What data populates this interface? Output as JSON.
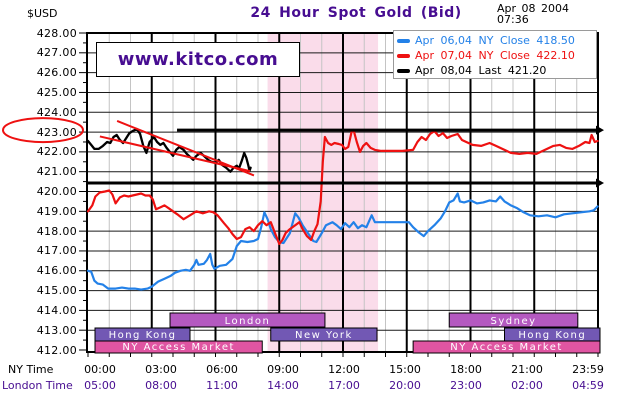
{
  "header": {
    "currency": "$USD",
    "title": "24 Hour Spot Gold (Bid)",
    "date": "Apr 08 2004",
    "time": "07:36",
    "watermark": "www.kitco.com"
  },
  "palette": {
    "purple_text": "#470d91",
    "blue_series": "#2381e8",
    "red_series": "#ee1111",
    "black_series": "#000000",
    "session_band_pink": "#fadcea",
    "bar_orchid": "#b459c0",
    "bar_slate_purple": "#7258b4",
    "bar_pink": "#e055a2"
  },
  "legend": {
    "items": [
      {
        "label": "Apr 06,04 NY Close 418.50",
        "color": "#2381e8"
      },
      {
        "label": "Apr 07,04 NY Close 422.10",
        "color": "#ee1111"
      },
      {
        "label": "Apr 08,04 Last 421.20",
        "color": "#000000"
      }
    ]
  },
  "x_axis": {
    "ny_label": "NY Time",
    "london_label": "London Time",
    "ny_ticks": [
      "00:00",
      "03:00",
      "06:00",
      "09:00",
      "12:00",
      "15:00",
      "18:00",
      "21:00",
      "23:59"
    ],
    "london_ticks": [
      "05:00",
      "08:00",
      "11:00",
      "14:00",
      "17:00",
      "20:00",
      "23:00",
      "02:00",
      "04:59"
    ]
  },
  "y_axis": {
    "min": 412,
    "max": 428,
    "step": 1,
    "label_format": "0.00"
  },
  "chart_data": {
    "type": "line",
    "title": "24 Hour Spot Gold (Bid)",
    "x_unit": "hours NY time",
    "x_range": [
      0,
      24
    ],
    "y_range": [
      412,
      428
    ],
    "grid": {
      "hourly_vlines": "gray",
      "three_hour_vlines": "black",
      "price_hlines": "black"
    },
    "series": [
      {
        "name": "Apr 06,04",
        "legend": "NY Close",
        "close": 418.5,
        "color": "#2381e8",
        "points": [
          [
            0,
            416.0
          ],
          [
            0.15,
            415.95
          ],
          [
            0.3,
            415.5
          ],
          [
            0.45,
            415.35
          ],
          [
            0.7,
            415.3
          ],
          [
            0.95,
            415.1
          ],
          [
            1.3,
            415.1
          ],
          [
            1.6,
            415.15
          ],
          [
            1.9,
            415.1
          ],
          [
            2.2,
            415.1
          ],
          [
            2.5,
            415.05
          ],
          [
            2.8,
            415.1
          ],
          [
            3.0,
            415.2
          ],
          [
            3.3,
            415.45
          ],
          [
            3.6,
            415.6
          ],
          [
            3.9,
            415.75
          ],
          [
            4.1,
            415.9
          ],
          [
            4.35,
            416.0
          ],
          [
            4.6,
            416.05
          ],
          [
            4.8,
            416.0
          ],
          [
            5.0,
            416.3
          ],
          [
            5.1,
            416.55
          ],
          [
            5.2,
            416.3
          ],
          [
            5.45,
            416.35
          ],
          [
            5.6,
            416.55
          ],
          [
            5.75,
            416.85
          ],
          [
            5.85,
            416.3
          ],
          [
            5.95,
            416.1
          ],
          [
            6.2,
            416.25
          ],
          [
            6.5,
            416.3
          ],
          [
            6.8,
            416.6
          ],
          [
            7.0,
            417.25
          ],
          [
            7.2,
            417.5
          ],
          [
            7.5,
            417.45
          ],
          [
            7.8,
            417.5
          ],
          [
            8.0,
            417.6
          ],
          [
            8.15,
            418.2
          ],
          [
            8.3,
            418.95
          ],
          [
            8.45,
            418.6
          ],
          [
            8.6,
            418.1
          ],
          [
            8.8,
            417.7
          ],
          [
            9.0,
            417.45
          ],
          [
            9.2,
            417.4
          ],
          [
            9.5,
            417.9
          ],
          [
            9.75,
            418.9
          ],
          [
            9.9,
            418.7
          ],
          [
            10.1,
            418.3
          ],
          [
            10.35,
            417.9
          ],
          [
            10.6,
            417.5
          ],
          [
            10.75,
            417.45
          ],
          [
            11.0,
            417.9
          ],
          [
            11.2,
            418.3
          ],
          [
            11.5,
            418.45
          ],
          [
            11.7,
            418.3
          ],
          [
            11.9,
            418.1
          ],
          [
            12.1,
            418.4
          ],
          [
            12.3,
            418.2
          ],
          [
            12.5,
            418.45
          ],
          [
            12.7,
            418.15
          ],
          [
            12.9,
            418.3
          ],
          [
            13.1,
            418.2
          ],
          [
            13.35,
            418.8
          ],
          [
            13.5,
            418.45
          ],
          [
            13.7,
            418.45
          ],
          [
            14.2,
            418.45
          ],
          [
            14.7,
            418.45
          ],
          [
            15.1,
            418.45
          ],
          [
            15.3,
            418.2
          ],
          [
            15.55,
            417.95
          ],
          [
            15.8,
            417.75
          ],
          [
            16.0,
            418.0
          ],
          [
            16.3,
            418.3
          ],
          [
            16.6,
            418.65
          ],
          [
            16.8,
            419.0
          ],
          [
            17.0,
            419.45
          ],
          [
            17.2,
            419.55
          ],
          [
            17.4,
            419.9
          ],
          [
            17.5,
            419.5
          ],
          [
            17.7,
            419.45
          ],
          [
            18.0,
            419.55
          ],
          [
            18.3,
            419.4
          ],
          [
            18.6,
            419.45
          ],
          [
            18.9,
            419.55
          ],
          [
            19.2,
            419.5
          ],
          [
            19.4,
            419.75
          ],
          [
            19.6,
            419.5
          ],
          [
            19.9,
            419.3
          ],
          [
            20.2,
            419.15
          ],
          [
            20.5,
            418.95
          ],
          [
            20.8,
            418.8
          ],
          [
            21.2,
            418.75
          ],
          [
            21.6,
            418.8
          ],
          [
            22.0,
            418.7
          ],
          [
            22.4,
            418.85
          ],
          [
            22.8,
            418.9
          ],
          [
            23.2,
            418.95
          ],
          [
            23.6,
            419.0
          ],
          [
            23.8,
            419.05
          ],
          [
            23.98,
            419.25
          ]
        ]
      },
      {
        "name": "Apr 07,04",
        "legend": "NY Close",
        "close": 422.1,
        "color": "#ee1111",
        "points": [
          [
            0,
            419.0
          ],
          [
            0.2,
            419.3
          ],
          [
            0.35,
            419.75
          ],
          [
            0.55,
            419.95
          ],
          [
            0.8,
            420.0
          ],
          [
            1.0,
            420.05
          ],
          [
            1.15,
            419.85
          ],
          [
            1.3,
            419.4
          ],
          [
            1.5,
            419.7
          ],
          [
            1.7,
            419.8
          ],
          [
            1.9,
            419.75
          ],
          [
            2.1,
            419.8
          ],
          [
            2.3,
            419.85
          ],
          [
            2.5,
            419.9
          ],
          [
            2.7,
            419.8
          ],
          [
            2.9,
            419.8
          ],
          [
            3.05,
            419.6
          ],
          [
            3.2,
            419.1
          ],
          [
            3.4,
            419.2
          ],
          [
            3.6,
            419.3
          ],
          [
            3.8,
            419.15
          ],
          [
            4.0,
            419.0
          ],
          [
            4.2,
            418.85
          ],
          [
            4.5,
            418.6
          ],
          [
            4.8,
            418.8
          ],
          [
            5.1,
            419.0
          ],
          [
            5.4,
            418.9
          ],
          [
            5.7,
            419.0
          ],
          [
            5.9,
            418.95
          ],
          [
            6.1,
            418.8
          ],
          [
            6.4,
            418.4
          ],
          [
            6.6,
            418.15
          ],
          [
            6.8,
            417.85
          ],
          [
            7.0,
            417.6
          ],
          [
            7.2,
            417.7
          ],
          [
            7.4,
            418.1
          ],
          [
            7.6,
            418.2
          ],
          [
            7.8,
            418.0
          ],
          [
            8.0,
            418.3
          ],
          [
            8.2,
            418.5
          ],
          [
            8.4,
            418.3
          ],
          [
            8.6,
            418.45
          ],
          [
            8.8,
            417.9
          ],
          [
            9.0,
            417.35
          ],
          [
            9.15,
            417.55
          ],
          [
            9.3,
            417.9
          ],
          [
            9.5,
            418.1
          ],
          [
            9.75,
            418.3
          ],
          [
            9.95,
            418.45
          ],
          [
            10.1,
            418.1
          ],
          [
            10.3,
            417.75
          ],
          [
            10.5,
            417.55
          ],
          [
            10.65,
            418.0
          ],
          [
            10.8,
            418.35
          ],
          [
            10.95,
            419.5
          ],
          [
            11.05,
            421.5
          ],
          [
            11.15,
            422.75
          ],
          [
            11.3,
            422.45
          ],
          [
            11.45,
            422.35
          ],
          [
            11.6,
            422.45
          ],
          [
            11.8,
            422.4
          ],
          [
            11.95,
            422.35
          ],
          [
            12.1,
            422.15
          ],
          [
            12.25,
            422.25
          ],
          [
            12.4,
            423.0
          ],
          [
            12.5,
            423.1
          ],
          [
            12.65,
            422.5
          ],
          [
            12.8,
            422.0
          ],
          [
            12.95,
            422.3
          ],
          [
            13.1,
            422.45
          ],
          [
            13.3,
            422.2
          ],
          [
            13.5,
            422.1
          ],
          [
            13.8,
            422.05
          ],
          [
            14.3,
            422.05
          ],
          [
            14.8,
            422.05
          ],
          [
            15.3,
            422.1
          ],
          [
            15.5,
            422.5
          ],
          [
            15.7,
            422.75
          ],
          [
            15.9,
            422.6
          ],
          [
            16.1,
            422.9
          ],
          [
            16.3,
            423.05
          ],
          [
            16.5,
            422.8
          ],
          [
            16.7,
            422.95
          ],
          [
            16.9,
            422.7
          ],
          [
            17.1,
            422.8
          ],
          [
            17.4,
            422.9
          ],
          [
            17.6,
            422.6
          ],
          [
            17.8,
            422.5
          ],
          [
            18.1,
            422.35
          ],
          [
            18.5,
            422.3
          ],
          [
            18.9,
            422.45
          ],
          [
            19.2,
            422.3
          ],
          [
            19.5,
            422.15
          ],
          [
            19.9,
            421.95
          ],
          [
            20.3,
            421.9
          ],
          [
            20.7,
            421.95
          ],
          [
            21.1,
            421.9
          ],
          [
            21.5,
            422.1
          ],
          [
            21.9,
            422.3
          ],
          [
            22.2,
            422.35
          ],
          [
            22.5,
            422.2
          ],
          [
            22.8,
            422.15
          ],
          [
            23.1,
            422.3
          ],
          [
            23.4,
            422.5
          ],
          [
            23.6,
            422.45
          ],
          [
            23.7,
            422.85
          ],
          [
            23.85,
            422.5
          ],
          [
            23.98,
            422.55
          ]
        ]
      },
      {
        "name": "Apr 08,04",
        "legend": "Last",
        "close": 421.2,
        "color": "#000000",
        "points": [
          [
            0,
            422.55
          ],
          [
            0.15,
            422.35
          ],
          [
            0.3,
            422.15
          ],
          [
            0.5,
            422.15
          ],
          [
            0.7,
            422.3
          ],
          [
            0.9,
            422.5
          ],
          [
            1.05,
            422.45
          ],
          [
            1.2,
            422.75
          ],
          [
            1.35,
            422.85
          ],
          [
            1.5,
            422.6
          ],
          [
            1.65,
            422.45
          ],
          [
            1.8,
            422.7
          ],
          [
            1.95,
            422.95
          ],
          [
            2.1,
            423.05
          ],
          [
            2.3,
            423.15
          ],
          [
            2.45,
            422.9
          ],
          [
            2.6,
            422.3
          ],
          [
            2.75,
            421.95
          ],
          [
            2.9,
            422.5
          ],
          [
            3.1,
            422.75
          ],
          [
            3.25,
            422.5
          ],
          [
            3.4,
            422.35
          ],
          [
            3.55,
            422.45
          ],
          [
            3.7,
            422.2
          ],
          [
            3.85,
            422.0
          ],
          [
            4.0,
            421.8
          ],
          [
            4.15,
            422.1
          ],
          [
            4.3,
            422.25
          ],
          [
            4.5,
            422.1
          ],
          [
            4.65,
            421.9
          ],
          [
            4.8,
            421.75
          ],
          [
            4.95,
            421.6
          ],
          [
            5.1,
            421.8
          ],
          [
            5.3,
            421.95
          ],
          [
            5.5,
            421.75
          ],
          [
            5.65,
            421.6
          ],
          [
            5.8,
            421.5
          ],
          [
            6.0,
            421.45
          ],
          [
            6.15,
            421.6
          ],
          [
            6.3,
            421.35
          ],
          [
            6.5,
            421.2
          ],
          [
            6.7,
            421.0
          ],
          [
            6.85,
            421.2
          ],
          [
            7.0,
            421.3
          ],
          [
            7.1,
            421.15
          ],
          [
            7.25,
            421.6
          ],
          [
            7.35,
            421.95
          ],
          [
            7.45,
            421.7
          ],
          [
            7.55,
            421.3
          ],
          [
            7.6,
            421.05
          ],
          [
            7.65,
            421.2
          ]
        ]
      }
    ],
    "annotations": {
      "session_band": {
        "from_hour": 8.45,
        "to_hour": 13.65,
        "color": "#fadcea"
      },
      "hlines": [
        {
          "price": 423.1,
          "from_hour": 4.19,
          "arrow": "right"
        },
        {
          "price": 420.43,
          "from_hour": 0,
          "arrow": "right"
        }
      ],
      "trendlines": [
        {
          "from": [
            1.37,
            423.56
          ],
          "to": [
            7.81,
            420.81
          ],
          "color": "#ee1111"
        },
        {
          "from": [
            0.56,
            422.78
          ],
          "to": [
            7.62,
            421.03
          ],
          "color": "#ee1111"
        }
      ],
      "ellipse": {
        "circled_y_label": "423.00",
        "center_price": 423.05,
        "color": "#ee1111"
      }
    },
    "market_sessions": [
      {
        "name": "London",
        "row": 0,
        "from": 3.86,
        "to": 11.15,
        "color": "#b459c0"
      },
      {
        "name": "Sydney",
        "row": 0,
        "from": 17.0,
        "to": 23.05,
        "color": "#b459c0"
      },
      {
        "name": "Hong Kong",
        "row": 1,
        "from": 0.33,
        "to": 4.8,
        "color": "#7258b4"
      },
      {
        "name": "New York",
        "row": 1,
        "from": 8.6,
        "to": 13.6,
        "color": "#7258b4"
      },
      {
        "name": "Hong Kong",
        "row": 1,
        "from": 19.6,
        "to": 24.1,
        "color": "#7258b4"
      },
      {
        "name": "NY Access Market",
        "row": 2,
        "from": 0.33,
        "to": 8.2,
        "color": "#e055a2"
      },
      {
        "name": "NY Access Market",
        "row": 2,
        "from": 15.3,
        "to": 24.1,
        "color": "#e055a2"
      }
    ]
  }
}
